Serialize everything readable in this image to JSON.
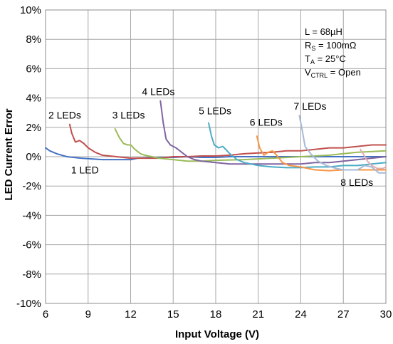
{
  "chart_data": {
    "type": "line",
    "xlabel": "Input Voltage (V)",
    "ylabel": "LED Current Error",
    "xlim": [
      6,
      30
    ],
    "ylim": [
      -10,
      10
    ],
    "x_ticks": [
      "6",
      "9",
      "12",
      "15",
      "18",
      "21",
      "24",
      "27",
      "30"
    ],
    "y_ticks": [
      "10%",
      "8%",
      "6%",
      "4%",
      "2%",
      "0%",
      "-2%",
      "-4%",
      "-6%",
      "-8%",
      "-10%"
    ],
    "grid": true,
    "annotation": {
      "line1": "L = 68µH",
      "line2_main": "R",
      "line2_sub": "S",
      "line2_rest": " = 100mΩ",
      "line3_main": "T",
      "line3_sub": "A",
      "line3_rest": " = 25°C",
      "line4_main": "V",
      "line4_sub": "CTRL",
      "line4_rest": " = Open"
    },
    "series": [
      {
        "name": "1 LED",
        "color": "#4472c4",
        "points": [
          [
            6,
            0.6
          ],
          [
            6.3,
            0.4
          ],
          [
            6.8,
            0.2
          ],
          [
            7.5,
            0.0
          ],
          [
            8.5,
            -0.1
          ],
          [
            10,
            -0.2
          ],
          [
            11.5,
            -0.2
          ],
          [
            12,
            -0.2
          ],
          [
            12.5,
            -0.1
          ],
          [
            14,
            -0.05
          ],
          [
            15,
            -0.05
          ],
          [
            16,
            0.0
          ],
          [
            17,
            -0.05
          ],
          [
            18,
            -0.05
          ],
          [
            19,
            0.0
          ],
          [
            20,
            0.0
          ],
          [
            22,
            0.0
          ],
          [
            24,
            0.0
          ],
          [
            26,
            0.0
          ],
          [
            28,
            0.0
          ],
          [
            30,
            0.0
          ]
        ]
      },
      {
        "name": "2 LEDs",
        "color": "#c0504d",
        "points": [
          [
            7.7,
            2.2
          ],
          [
            7.85,
            1.6
          ],
          [
            8.1,
            1.0
          ],
          [
            8.4,
            1.1
          ],
          [
            8.7,
            0.9
          ],
          [
            9,
            0.6
          ],
          [
            9.5,
            0.3
          ],
          [
            10,
            0.1
          ],
          [
            11,
            0.0
          ],
          [
            12,
            -0.1
          ],
          [
            13,
            -0.1
          ],
          [
            14,
            -0.1
          ],
          [
            15,
            0.0
          ],
          [
            16,
            0.0
          ],
          [
            17,
            0.05
          ],
          [
            18,
            0.05
          ],
          [
            19,
            0.1
          ],
          [
            20,
            0.2
          ],
          [
            21,
            0.25
          ],
          [
            22,
            0.3
          ],
          [
            23,
            0.4
          ],
          [
            24,
            0.4
          ],
          [
            25,
            0.5
          ],
          [
            26,
            0.6
          ],
          [
            27,
            0.6
          ],
          [
            28,
            0.7
          ],
          [
            29,
            0.8
          ],
          [
            30,
            0.8
          ]
        ]
      },
      {
        "name": "3 LEDs",
        "color": "#9bbb59",
        "points": [
          [
            10.9,
            1.9
          ],
          [
            11.2,
            1.3
          ],
          [
            11.5,
            0.9
          ],
          [
            11.8,
            0.8
          ],
          [
            12,
            0.8
          ],
          [
            12.3,
            0.5
          ],
          [
            12.7,
            0.2
          ],
          [
            13,
            0.1
          ],
          [
            14,
            -0.1
          ],
          [
            15,
            -0.2
          ],
          [
            16,
            -0.3
          ],
          [
            17,
            -0.3
          ],
          [
            18,
            -0.25
          ],
          [
            20,
            -0.2
          ],
          [
            22,
            -0.1
          ],
          [
            24,
            0.0
          ],
          [
            26,
            0.1
          ],
          [
            28,
            0.3
          ],
          [
            30,
            0.4
          ]
        ]
      },
      {
        "name": "4 LEDs",
        "color": "#8064a2",
        "points": [
          [
            14.1,
            3.8
          ],
          [
            14.3,
            2.3
          ],
          [
            14.5,
            1.2
          ],
          [
            14.8,
            0.8
          ],
          [
            15.2,
            0.6
          ],
          [
            15.6,
            0.3
          ],
          [
            16,
            0.0
          ],
          [
            16.5,
            -0.2
          ],
          [
            17,
            -0.3
          ],
          [
            18,
            -0.4
          ],
          [
            19,
            -0.5
          ],
          [
            20,
            -0.5
          ],
          [
            22,
            -0.5
          ],
          [
            24,
            -0.5
          ],
          [
            25,
            -0.4
          ],
          [
            26,
            -0.4
          ],
          [
            27,
            -0.3
          ],
          [
            28,
            -0.2
          ],
          [
            29,
            -0.1
          ],
          [
            30,
            0.0
          ]
        ]
      },
      {
        "name": "5 LEDs",
        "color": "#4bacc6",
        "points": [
          [
            17.5,
            2.3
          ],
          [
            17.7,
            1.4
          ],
          [
            17.9,
            0.8
          ],
          [
            18.2,
            0.6
          ],
          [
            18.5,
            0.7
          ],
          [
            19,
            0.2
          ],
          [
            19.5,
            -0.2
          ],
          [
            20,
            -0.4
          ],
          [
            21,
            -0.6
          ],
          [
            22,
            -0.7
          ],
          [
            23,
            -0.75
          ],
          [
            24,
            -0.75
          ],
          [
            25,
            -0.7
          ],
          [
            26,
            -0.7
          ],
          [
            27,
            -0.6
          ],
          [
            28,
            -0.6
          ],
          [
            29,
            -0.5
          ],
          [
            30,
            -0.4
          ]
        ]
      },
      {
        "name": "6 LEDs",
        "color": "#f79646",
        "points": [
          [
            20.9,
            1.4
          ],
          [
            21.1,
            0.6
          ],
          [
            21.4,
            0.1
          ],
          [
            21.7,
            0.3
          ],
          [
            22,
            0.4
          ],
          [
            22.3,
            0.1
          ],
          [
            22.7,
            -0.4
          ],
          [
            23.2,
            -0.6
          ],
          [
            24,
            -0.7
          ],
          [
            25,
            -0.9
          ],
          [
            26,
            -0.95
          ],
          [
            27,
            -0.9
          ],
          [
            28,
            -0.9
          ],
          [
            29,
            -0.9
          ],
          [
            30,
            -0.9
          ]
        ]
      },
      {
        "name": "7 LEDs",
        "color": "#a5b9d6",
        "points": [
          [
            23.9,
            2.8
          ],
          [
            24.1,
            1.8
          ],
          [
            24.3,
            0.7
          ],
          [
            24.7,
            0.2
          ],
          [
            25.2,
            -0.3
          ],
          [
            25.8,
            -0.6
          ],
          [
            26.5,
            -0.8
          ],
          [
            27,
            -0.9
          ],
          [
            27.5,
            -0.9
          ],
          [
            28,
            -0.9
          ],
          [
            28.5,
            -0.6
          ],
          [
            29,
            -0.7
          ],
          [
            29.5,
            -1.1
          ],
          [
            30,
            -1.1
          ]
        ]
      },
      {
        "name": "8 LEDs",
        "color": "#e0aeae",
        "points": [
          [
            28.2,
            0.5
          ],
          [
            28.4,
            0.2
          ],
          [
            28.7,
            -0.3
          ],
          [
            29,
            -0.6
          ],
          [
            29.4,
            -0.8
          ],
          [
            29.8,
            -0.8
          ],
          [
            30,
            -0.7
          ]
        ]
      }
    ],
    "series_labels": [
      {
        "text": "1 LED",
        "x": 7.8,
        "y": -1.15
      },
      {
        "text": "2 LEDs",
        "x": 6.2,
        "y": 2.6
      },
      {
        "text": "3 LEDs",
        "x": 10.7,
        "y": 2.6
      },
      {
        "text": "4 LEDs",
        "x": 12.8,
        "y": 4.2
      },
      {
        "text": "5 LEDs",
        "x": 16.8,
        "y": 2.9
      },
      {
        "text": "6 LEDs",
        "x": 20.4,
        "y": 2.1
      },
      {
        "text": "7 LEDs",
        "x": 23.5,
        "y": 3.2
      },
      {
        "text": "8 LEDs",
        "x": 26.8,
        "y": -2.0
      }
    ]
  }
}
